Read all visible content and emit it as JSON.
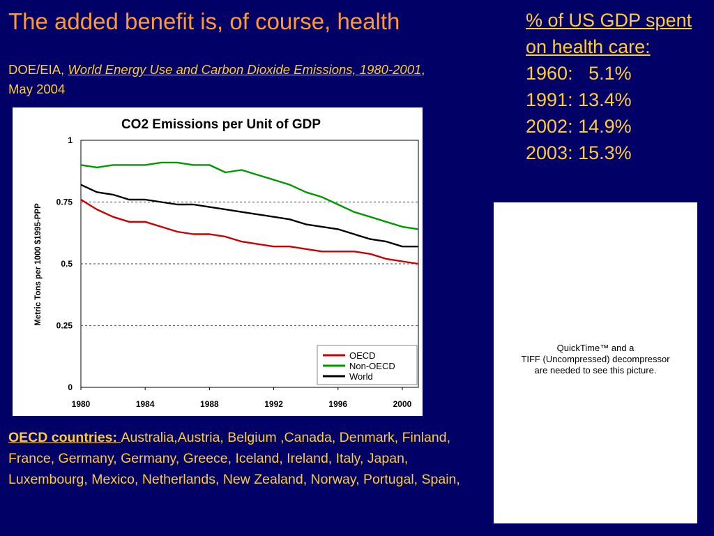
{
  "slide": {
    "title": "The added benefit is, of course, health",
    "source_prefix": "DOE/EIA, ",
    "source_title": "World Energy Use and Carbon Dioxide Emissions, 1980-2001",
    "source_suffix": ", May 2004"
  },
  "gdp_panel": {
    "heading": "% of US GDP spent on health care:",
    "rows": [
      "1960:   5.1%",
      "1991: 13.4%",
      "2002: 14.9%",
      "2003: 15.3%"
    ]
  },
  "quicktime": {
    "line1": "QuickTime™ and a",
    "line2": "TIFF (Uncompressed) decompressor",
    "line3": "are needed to see this picture."
  },
  "oecd": {
    "label": "OECD countries: ",
    "text": "Australia,\u001f\u001f\u001fAustria, Belgium ,Canada, Denmark, Finland, France, Germany, Germany, Greece, Iceland, Ireland, Italy, Japan, Luxembourg, Mexico, Netherlands, New Zealand, Norway, Portugal, Spain,"
  },
  "colors": {
    "background": "#000066",
    "title": "#ff9933",
    "text": "#ffcc33",
    "oecd": "#cc0000",
    "non_oecd": "#009900",
    "world": "#000000"
  },
  "chart_data": {
    "type": "line",
    "title": "CO2 Emissions per Unit of GDP",
    "xlabel": "",
    "ylabel": "Metric Tons per 1000 $1995-PPP",
    "x": [
      1980,
      1981,
      1982,
      1983,
      1984,
      1985,
      1986,
      1987,
      1988,
      1989,
      1990,
      1991,
      1992,
      1993,
      1994,
      1995,
      1996,
      1997,
      1998,
      1999,
      2000,
      2001
    ],
    "xlim": [
      1980,
      2001
    ],
    "ylim": [
      0,
      1
    ],
    "xticks": [
      "1980",
      "1984",
      "1988",
      "1992",
      "1996",
      "2000"
    ],
    "yticks": [
      "0",
      "0.25",
      "0.5",
      "0.75",
      "1"
    ],
    "grid": "dashed at 0.25, 0.5, 0.75",
    "legend_position": "bottom-right",
    "series": [
      {
        "name": "OECD",
        "values": [
          0.76,
          0.72,
          0.69,
          0.67,
          0.67,
          0.65,
          0.63,
          0.62,
          0.62,
          0.61,
          0.59,
          0.58,
          0.57,
          0.57,
          0.56,
          0.55,
          0.55,
          0.55,
          0.54,
          0.52,
          0.51,
          0.5
        ]
      },
      {
        "name": "Non-OECD",
        "values": [
          0.9,
          0.89,
          0.9,
          0.9,
          0.9,
          0.91,
          0.91,
          0.9,
          0.9,
          0.87,
          0.88,
          0.86,
          0.84,
          0.82,
          0.79,
          0.77,
          0.74,
          0.71,
          0.69,
          0.67,
          0.65,
          0.64
        ]
      },
      {
        "name": "World",
        "values": [
          0.82,
          0.79,
          0.78,
          0.76,
          0.76,
          0.75,
          0.74,
          0.74,
          0.73,
          0.72,
          0.71,
          0.7,
          0.69,
          0.68,
          0.66,
          0.65,
          0.64,
          0.62,
          0.6,
          0.59,
          0.57,
          0.57
        ]
      }
    ]
  }
}
